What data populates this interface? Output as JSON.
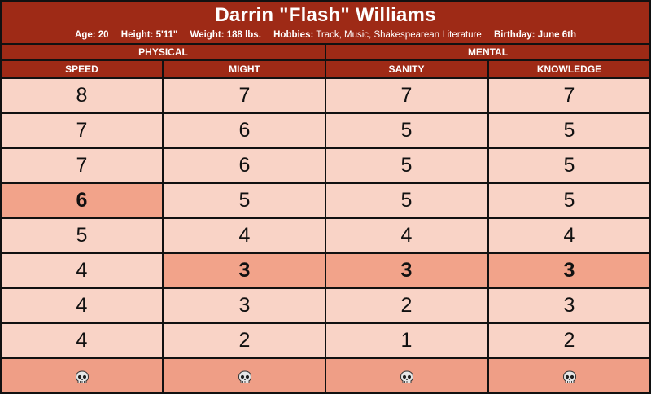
{
  "character": {
    "name": "Darrin \"Flash\" Williams",
    "info": [
      {
        "key": "Age:",
        "value": "20"
      },
      {
        "key": "Height:",
        "value": "5'11\""
      },
      {
        "key": "Weight:",
        "value": "188 lbs."
      },
      {
        "key": "Hobbies:",
        "value": "Track, Music, Shakespearean Literature"
      },
      {
        "key": "Birthday:",
        "value": "June 6th"
      }
    ]
  },
  "groups": {
    "physical": "PHYSICAL",
    "mental": "MENTAL"
  },
  "columns": [
    "SPEED",
    "MIGHT",
    "SANITY",
    "KNOWLEDGE"
  ],
  "traits": {
    "speed": {
      "values": [
        "8",
        "7",
        "7",
        "6",
        "5",
        "4",
        "4",
        "4"
      ],
      "start_index": 3
    },
    "might": {
      "values": [
        "7",
        "6",
        "6",
        "5",
        "4",
        "3",
        "3",
        "2"
      ],
      "start_index": 5
    },
    "sanity": {
      "values": [
        "7",
        "5",
        "5",
        "5",
        "4",
        "3",
        "2",
        "1"
      ],
      "start_index": 5
    },
    "knowledge": {
      "values": [
        "7",
        "5",
        "5",
        "5",
        "4",
        "3",
        "3",
        "2"
      ],
      "start_index": 5
    }
  },
  "death_icon": "skull-icon",
  "colors": {
    "header": "#9e2a16",
    "cell": "#f9d3c6",
    "start_cell": "#f2a38a",
    "death_cell": "#ef9e86"
  }
}
